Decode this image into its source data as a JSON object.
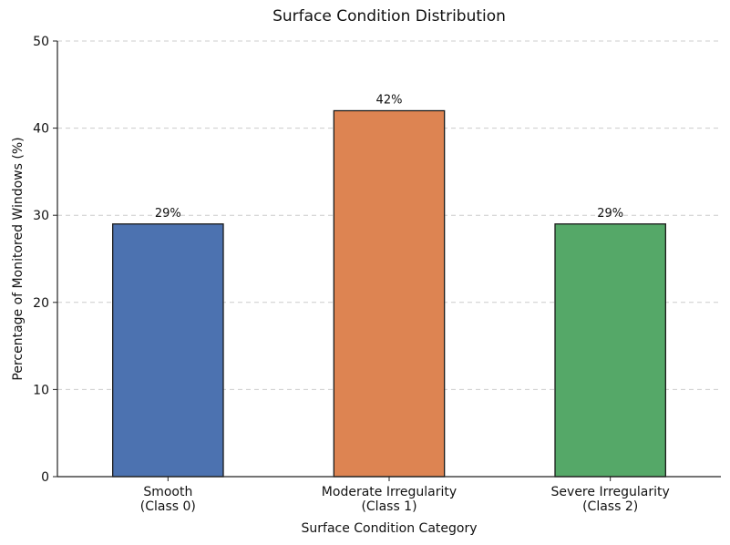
{
  "chart_data": {
    "type": "bar",
    "title": "Surface Condition Distribution",
    "xlabel": "Surface Condition Category",
    "ylabel": "Percentage of Monitored Windows (%)",
    "categories": [
      [
        "Smooth",
        "(Class 0)"
      ],
      [
        "Moderate Irregularity",
        "(Class 1)"
      ],
      [
        "Severe Irregularity",
        "(Class 2)"
      ]
    ],
    "values": [
      29,
      42,
      29
    ],
    "data_labels": [
      "29%",
      "42%",
      "29%"
    ],
    "colors": [
      "#4c72b0",
      "#dd8452",
      "#55a868"
    ],
    "ylim": [
      0,
      50
    ],
    "yticks": [
      0,
      10,
      20,
      30,
      40,
      50
    ],
    "grid": true,
    "legend": "none"
  }
}
